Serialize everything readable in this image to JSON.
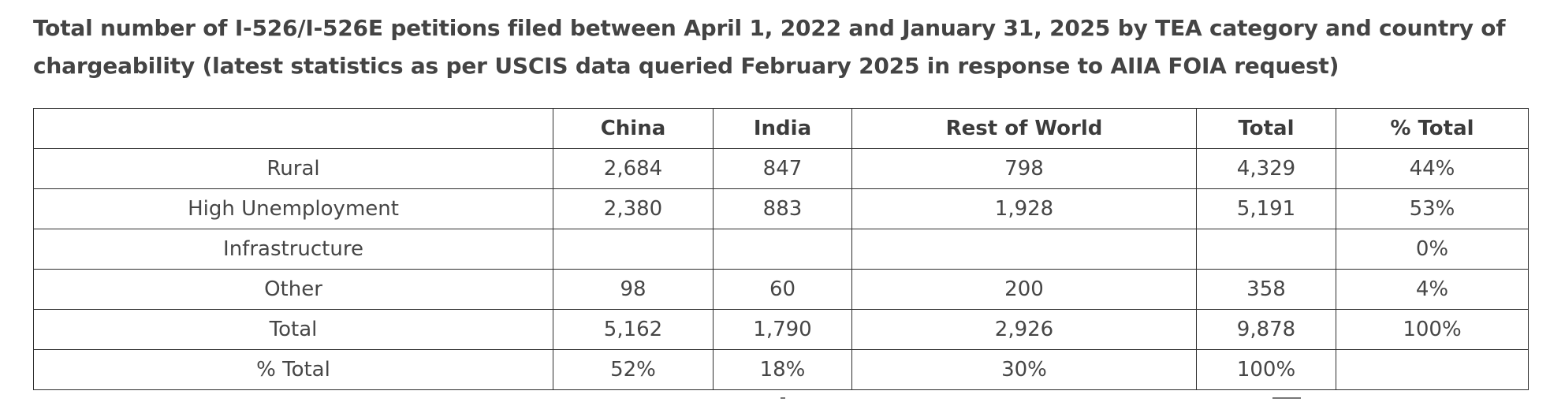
{
  "title": "Total number of I-526/I-526E petitions filed between April 1, 2022 and January 31, 2025 by TEA category and country of chargeability (latest statistics as per USCIS data queried February 2025 in response to AIIA FOIA request)",
  "table": {
    "headers": [
      "",
      "China",
      "India",
      "Rest of World",
      "Total",
      "% Total"
    ],
    "rows": [
      [
        "Rural",
        "2,684",
        "847",
        "798",
        "4,329",
        "44%"
      ],
      [
        "High Unemployment",
        "2,380",
        "883",
        "1,928",
        "5,191",
        "53%"
      ],
      [
        "Infrastructure",
        "",
        "",
        "",
        "",
        "0%"
      ],
      [
        "Other",
        "98",
        "60",
        "200",
        "358",
        "4%"
      ],
      [
        "Total",
        "5,162",
        "1,790",
        "2,926",
        "9,878",
        "100%"
      ],
      [
        "% Total",
        "52%",
        "18%",
        "30%",
        "100%",
        ""
      ]
    ]
  }
}
